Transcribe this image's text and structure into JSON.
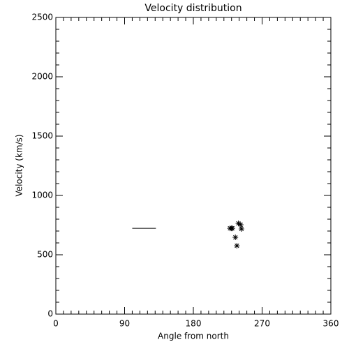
{
  "chart_data": {
    "type": "scatter",
    "title": "Velocity distribution",
    "x_label": "Angle from north",
    "y_label": "Velocity (km/s)",
    "xlim": [
      0,
      360
    ],
    "xticks": [
      0,
      90,
      180,
      270,
      360
    ],
    "x_minor_per_major": 9,
    "ylim": [
      0,
      2500
    ],
    "yticks": [
      0,
      500,
      1000,
      1500,
      2000,
      2500
    ],
    "y_minor_per_major": 5,
    "color": "#000000",
    "points": {
      "x": [
        228,
        231,
        239,
        242,
        243,
        235,
        237,
        230
      ],
      "y": [
        723,
        723,
        765,
        753,
        718,
        647,
        576,
        723
      ]
    },
    "line_segment": {
      "x": [
        100,
        131
      ],
      "y": [
        723,
        723
      ]
    }
  }
}
